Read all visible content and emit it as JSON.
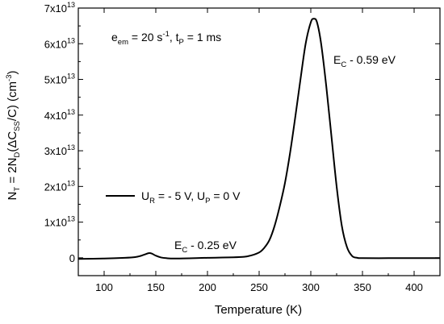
{
  "chart_data": {
    "type": "line",
    "xlabel": "Temperature (K)",
    "ylabel": {
      "prefix": "N",
      "sub1": "T",
      "mid1": " = 2N",
      "sub2": "D",
      "mid2": "(ΔC",
      "sub3": "SS",
      "mid3": "/C) (cm",
      "sup": "-3",
      "suffix": ")"
    },
    "xlim": [
      75,
      425
    ],
    "ylim": [
      -5000000000000.0,
      70000000000000.0
    ],
    "x_ticks": [
      100,
      150,
      200,
      250,
      300,
      350,
      400
    ],
    "y_ticks": [
      {
        "value": 0,
        "base": "0",
        "exp": ""
      },
      {
        "value": 10000000000000.0,
        "base": "1x10",
        "exp": "13"
      },
      {
        "value": 20000000000000.0,
        "base": "2x10",
        "exp": "13"
      },
      {
        "value": 30000000000000.0,
        "base": "3x10",
        "exp": "13"
      },
      {
        "value": 40000000000000.0,
        "base": "4x10",
        "exp": "13"
      },
      {
        "value": 50000000000000.0,
        "base": "5x10",
        "exp": "13"
      },
      {
        "value": 60000000000000.0,
        "base": "6x10",
        "exp": "13"
      },
      {
        "value": 70000000000000.0,
        "base": "7x10",
        "exp": "13"
      }
    ],
    "grid": false,
    "legend": {
      "position": "middle-left",
      "label": {
        "p1": "U",
        "s1": "R",
        "p2": " = - 5 V, U",
        "s2": "P",
        "p3": " = 0 V"
      }
    },
    "annotations": {
      "params": {
        "p1": "e",
        "s1": "em",
        "p2": " = 20 s",
        "sup1": "-1",
        "p3": ", t",
        "s2": "P",
        "p4": " =  1 ms"
      },
      "peak_high": {
        "p1": "E",
        "s1": "C",
        "p2": " - 0.59 eV"
      },
      "peak_low": {
        "p1": "E",
        "s1": "C",
        "p2": " - 0.25 eV"
      }
    },
    "series": [
      {
        "x": [
          75,
          100,
          120,
          130,
          135,
          140,
          143,
          146,
          150,
          155,
          160,
          170,
          200,
          230,
          240,
          250,
          255,
          260,
          265,
          270,
          275,
          280,
          285,
          290,
          295,
          300,
          303,
          306,
          310,
          315,
          320,
          325,
          330,
          335,
          340,
          345,
          350,
          375,
          400,
          425
        ],
        "y": [
          -300000000000.0,
          -200000000000.0,
          0,
          200000000000.0,
          500000000000.0,
          1000000000000.0,
          1300000000000.0,
          1200000000000.0,
          600000000000.0,
          100000000000.0,
          -100000000000.0,
          -200000000000.0,
          0,
          200000000000.0,
          500000000000.0,
          1500000000000.0,
          2800000000000.0,
          5000000000000.0,
          9000000000000.0,
          14500000000000.0,
          21000000000000.0,
          29500000000000.0,
          39500000000000.0,
          50000000000000.0,
          60000000000000.0,
          66000000000000.0,
          67000000000000.0,
          66000000000000.0,
          60000000000000.0,
          48000000000000.0,
          34000000000000.0,
          20000000000000.0,
          9000000000000.0,
          3000000000000.0,
          500000000000.0,
          0,
          -100000000000.0,
          -100000000000.0,
          -100000000000.0,
          -100000000000.0
        ]
      }
    ]
  }
}
